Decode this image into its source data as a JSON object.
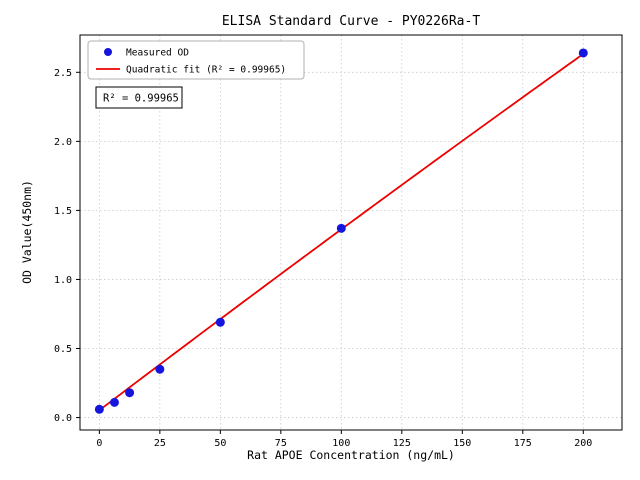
{
  "chart_data": {
    "type": "scatter",
    "title": "ELISA Standard Curve - PY0226Ra-T",
    "xlabel": "Rat APOE Concentration (ng/mL)",
    "ylabel": "OD Value(450nm)",
    "xlim": [
      -8,
      216
    ],
    "ylim": [
      -0.09,
      2.77
    ],
    "x_ticks": [
      0,
      25,
      50,
      75,
      100,
      125,
      150,
      175,
      200
    ],
    "x_tick_labels": [
      "0",
      "25",
      "50",
      "75",
      "100",
      "125",
      "150",
      "175",
      "200"
    ],
    "y_ticks": [
      0.0,
      0.5,
      1.0,
      1.5,
      2.0,
      2.5
    ],
    "y_tick_labels": [
      "0.0",
      "0.5",
      "1.0",
      "1.5",
      "2.0",
      "2.5"
    ],
    "grid": true,
    "legend_position": "upper-left",
    "series": [
      {
        "name": "Measured OD",
        "type": "scatter",
        "color": "#1515dd",
        "points": [
          [
            0,
            0.06
          ],
          [
            6.25,
            0.11
          ],
          [
            12.5,
            0.18
          ],
          [
            25,
            0.35
          ],
          [
            50,
            0.69
          ],
          [
            100,
            1.37
          ],
          [
            200,
            2.64
          ]
        ]
      },
      {
        "name": "Quadratic fit (R² = 0.99965)",
        "type": "line",
        "color": "#ee0000",
        "fit_coeffs": [
          0.053,
          0.0133,
          -2e-06
        ],
        "x_range": [
          0,
          200
        ]
      }
    ],
    "annotation": "R² = 0.99965",
    "r_squared": 0.99965
  }
}
